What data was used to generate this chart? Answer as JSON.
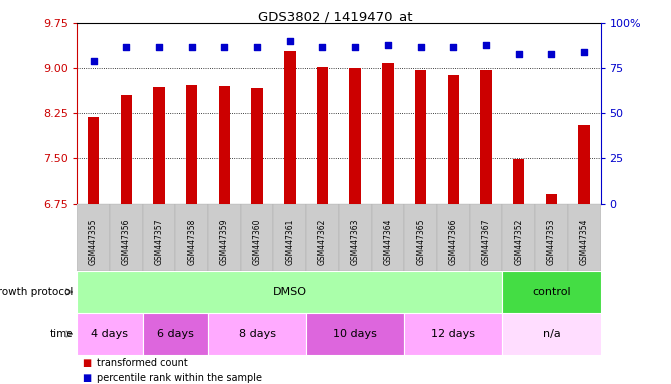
{
  "title": "GDS3802 / 1419470_at",
  "samples": [
    "GSM447355",
    "GSM447356",
    "GSM447357",
    "GSM447358",
    "GSM447359",
    "GSM447360",
    "GSM447361",
    "GSM447362",
    "GSM447363",
    "GSM447364",
    "GSM447365",
    "GSM447366",
    "GSM447367",
    "GSM447352",
    "GSM447353",
    "GSM447354"
  ],
  "bar_values": [
    8.18,
    8.55,
    8.68,
    8.72,
    8.71,
    8.67,
    9.28,
    9.02,
    9.01,
    9.08,
    8.97,
    8.88,
    8.97,
    7.49,
    6.9,
    8.05
  ],
  "percentile_values": [
    79,
    87,
    87,
    87,
    87,
    87,
    90,
    87,
    87,
    88,
    87,
    87,
    88,
    83,
    83,
    84
  ],
  "bar_color": "#cc0000",
  "percentile_color": "#0000cc",
  "ylim_left": [
    6.75,
    9.75
  ],
  "ylim_right": [
    0,
    100
  ],
  "yticks_left": [
    6.75,
    7.5,
    8.25,
    9.0,
    9.75
  ],
  "yticks_right": [
    0,
    25,
    50,
    75,
    100
  ],
  "ytick_labels_right": [
    "0",
    "25",
    "50",
    "75",
    "100%"
  ],
  "grid_values": [
    7.5,
    8.25,
    9.0
  ],
  "growth_protocol_groups": [
    {
      "label": "DMSO",
      "start": 0,
      "end": 12,
      "color": "#aaffaa"
    },
    {
      "label": "control",
      "start": 13,
      "end": 15,
      "color": "#44dd44"
    }
  ],
  "time_groups": [
    {
      "label": "4 days",
      "start": 0,
      "end": 1,
      "color": "#ffaaff"
    },
    {
      "label": "6 days",
      "start": 2,
      "end": 3,
      "color": "#dd66dd"
    },
    {
      "label": "8 days",
      "start": 4,
      "end": 6,
      "color": "#ffaaff"
    },
    {
      "label": "10 days",
      "start": 7,
      "end": 9,
      "color": "#dd66dd"
    },
    {
      "label": "12 days",
      "start": 10,
      "end": 12,
      "color": "#ffaaff"
    },
    {
      "label": "n/a",
      "start": 13,
      "end": 15,
      "color": "#ffddff"
    }
  ],
  "legend_items": [
    {
      "label": "transformed count",
      "color": "#cc0000"
    },
    {
      "label": "percentile rank within the sample",
      "color": "#0000cc"
    }
  ],
  "row_labels": [
    "growth protocol",
    "time"
  ],
  "label_color_left": "#cc0000",
  "label_color_right": "#0000cc"
}
